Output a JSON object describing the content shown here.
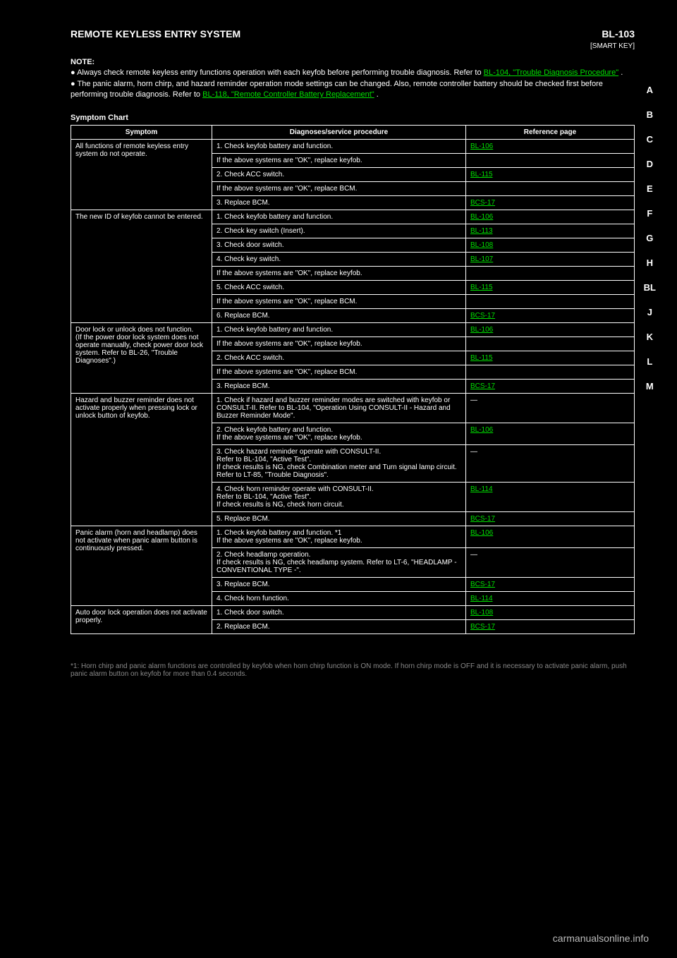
{
  "header": {
    "section": "REMOTE KEYLESS ENTRY SYSTEM",
    "right": "BL-103",
    "page_label": "[SMART KEY]"
  },
  "sidenav": [
    "A",
    "B",
    "C",
    "D",
    "E",
    "F",
    "G",
    "H",
    "BL",
    "J",
    "K",
    "L",
    "M"
  ],
  "sidenav_current": "BL",
  "note": {
    "prefix": "NOTE:",
    "l1a": "Always check remote keyless entry functions operation with each keyfob before performing trouble diagnosis. Refer to ",
    "l1link": "BL-104, \"Trouble Diagnosis Procedure\"",
    "l1b": ".",
    "l2a": "The panic alarm, horn chirp, and hazard reminder operation mode settings can be changed. Also, remote controller battery should be checked first before performing trouble diagnosis. Refer to ",
    "l2link": "BL-118, \"Remote Controller Battery Replacement\"",
    "l2b": "."
  },
  "sym_title": "Symptom Chart",
  "cols": {
    "sym": "Symptom",
    "diag": "Diagnoses/service procedure",
    "ref": "Reference page"
  },
  "rows": [
    {
      "sym": "All functions of remote keyless entry system do not operate.",
      "items": [
        {
          "d": "1. Check keyfob battery and function.",
          "r": "BL-106"
        },
        {
          "d": "   If the above systems are \"OK\", replace keyfob.",
          "r": ""
        },
        {
          "d": "2. Check ACC switch.",
          "r": "BL-115"
        },
        {
          "d": "   If the above systems are \"OK\", replace BCM.",
          "r": ""
        },
        {
          "d": "3. Replace BCM.",
          "r": "BCS-17"
        }
      ]
    },
    {
      "sym": "The new ID of keyfob cannot be entered.",
      "items": [
        {
          "d": "1. Check keyfob battery and function.",
          "r": "BL-106"
        },
        {
          "d": "2. Check key switch (Insert).",
          "r": "BL-113"
        },
        {
          "d": "3. Check door switch.",
          "r": "BL-108"
        },
        {
          "d": "4. Check key switch.",
          "r": "BL-107"
        },
        {
          "d": "   If the above systems are \"OK\", replace keyfob.",
          "r": ""
        },
        {
          "d": "5. Check ACC switch.",
          "r": "BL-115"
        },
        {
          "d": "   If the above systems are \"OK\", replace BCM.",
          "r": ""
        },
        {
          "d": "6. Replace BCM.",
          "r": "BCS-17"
        }
      ]
    },
    {
      "sym": "Door lock or unlock does not function.\n(If the power door lock system does not operate manually, check power door lock system. Refer to BL-26, \"Trouble Diagnoses\".)",
      "items": [
        {
          "d": "1. Check keyfob battery and function.",
          "r": "BL-106"
        },
        {
          "d": "   If the above systems are \"OK\", replace keyfob.",
          "r": ""
        },
        {
          "d": "2. Check ACC switch.",
          "r": "BL-115"
        },
        {
          "d": "   If the above systems are \"OK\", replace BCM.",
          "r": ""
        },
        {
          "d": "3. Replace BCM.",
          "r": "BCS-17"
        }
      ]
    },
    {
      "sym": "Hazard and buzzer reminder does not activate properly when pressing lock or unlock button of keyfob.",
      "items": [
        {
          "d": "1. Check if hazard and buzzer reminder modes are switched with keyfob or CONSULT-II. Refer to BL-104, \"Operation Using CONSULT-II - Hazard and Buzzer Reminder Mode\".",
          "r": "—"
        },
        {
          "d": "2. Check keyfob battery and function.\n   If the above systems are \"OK\", replace keyfob.",
          "r": "BL-106"
        },
        {
          "d": "3. Check hazard reminder operate with CONSULT-II.\n   Refer to BL-104, \"Active Test\".\n   If check results is NG, check Combination meter and Turn signal lamp circuit. Refer to LT-85, \"Trouble Diagnosis\".",
          "r": "—"
        },
        {
          "d": "4. Check horn reminder operate with CONSULT-II.\n   Refer to BL-104, \"Active Test\".\n   If check results is NG, check horn circuit.",
          "r": "BL-114"
        },
        {
          "d": "5. Replace BCM.",
          "r": "BCS-17"
        }
      ]
    },
    {
      "sym": "Panic alarm (horn and headlamp) does not activate when panic alarm button is continuously pressed.",
      "items": [
        {
          "d": "1. Check keyfob battery and function. *1\n   If the above systems are \"OK\", replace keyfob.",
          "r": "BL-106"
        },
        {
          "d": "2. Check headlamp operation.\n   If check results is NG, check headlamp system. Refer to LT-6, \"HEADLAMP - CONVENTIONAL TYPE -\".",
          "r": "—"
        },
        {
          "d": "3. Replace BCM.",
          "r": "BCS-17"
        },
        {
          "d": "4. Check horn function.",
          "r": "BL-114"
        }
      ]
    },
    {
      "sym": "Auto door lock operation does not activate properly.",
      "items": [
        {
          "d": "1. Check door switch.",
          "r": "BL-108"
        },
        {
          "d": "2. Replace BCM.",
          "r": "BCS-17"
        }
      ]
    }
  ],
  "footnote": "*1: Horn chirp and panic alarm functions are controlled by keyfob when horn chirp function is ON mode. If horn chirp mode is OFF and it is necessary to activate panic alarm, push panic alarm button on keyfob for more than 0.4 seconds.",
  "watermark": "carmanualsonline.info"
}
